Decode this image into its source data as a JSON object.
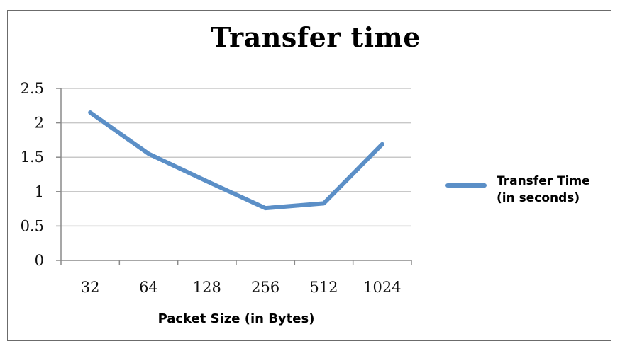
{
  "chart_data": {
    "type": "line",
    "title": "Transfer time",
    "xlabel": "Packet Size (in Bytes)",
    "ylabel": "",
    "categories": [
      "32",
      "64",
      "128",
      "256",
      "512",
      "1024"
    ],
    "series": [
      {
        "name": "Transfer Time (in seconds)",
        "values": [
          2.15,
          1.55,
          1.15,
          0.76,
          0.83,
          1.69
        ],
        "color": "#5b8fc7"
      }
    ],
    "ylim": [
      0,
      2.5
    ],
    "yticks": [
      "0",
      "0.5",
      "1",
      "1.5",
      "2",
      "2.5"
    ],
    "grid": true,
    "legend": "right"
  }
}
